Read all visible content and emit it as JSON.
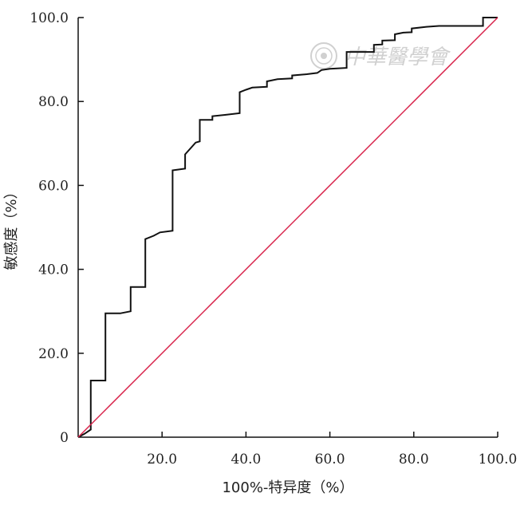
{
  "chart_data": {
    "type": "line",
    "xlabel": "100%-特异度（%）",
    "ylabel": "敏感度（%）",
    "xlim": [
      0,
      100
    ],
    "ylim": [
      0,
      100
    ],
    "x_ticks": [
      20,
      40,
      60,
      80,
      100
    ],
    "x_tick_labels": [
      "20.0",
      "40.0",
      "60.0",
      "80.0",
      "100.0"
    ],
    "y_ticks": [
      0,
      20,
      40,
      60,
      80,
      100
    ],
    "y_tick_labels": [
      "0",
      "20.0",
      "40.0",
      "60.0",
      "80.0",
      "100.0"
    ],
    "grid": false,
    "series": [
      {
        "color": "#111111",
        "points": [
          [
            0,
            0
          ],
          [
            1.5,
            0.8
          ],
          [
            3.0,
            1.8
          ],
          [
            3.0,
            13.5
          ],
          [
            6.5,
            13.5
          ],
          [
            6.5,
            29.5
          ],
          [
            10.0,
            29.5
          ],
          [
            12.5,
            30.0
          ],
          [
            12.5,
            35.8
          ],
          [
            16.0,
            35.8
          ],
          [
            16.0,
            47.2
          ],
          [
            18.0,
            48.0
          ],
          [
            19.5,
            48.8
          ],
          [
            22.5,
            49.2
          ],
          [
            22.5,
            63.6
          ],
          [
            25.5,
            64.0
          ],
          [
            25.5,
            67.4
          ],
          [
            28.0,
            70.2
          ],
          [
            29.0,
            70.5
          ],
          [
            29.0,
            75.6
          ],
          [
            32.0,
            75.6
          ],
          [
            32.0,
            76.5
          ],
          [
            35.0,
            76.8
          ],
          [
            38.5,
            77.2
          ],
          [
            38.5,
            82.2
          ],
          [
            40.0,
            82.8
          ],
          [
            41.5,
            83.3
          ],
          [
            45.0,
            83.5
          ],
          [
            45.0,
            84.8
          ],
          [
            47.5,
            85.3
          ],
          [
            51.0,
            85.5
          ],
          [
            51.0,
            86.2
          ],
          [
            54.5,
            86.5
          ],
          [
            57.0,
            86.8
          ],
          [
            58.0,
            87.5
          ],
          [
            60.0,
            87.8
          ],
          [
            64.0,
            88.0
          ],
          [
            64.0,
            91.8
          ],
          [
            70.5,
            91.8
          ],
          [
            70.5,
            93.5
          ],
          [
            72.5,
            93.6
          ],
          [
            72.5,
            94.5
          ],
          [
            75.5,
            94.6
          ],
          [
            75.5,
            96.0
          ],
          [
            77.5,
            96.4
          ],
          [
            79.5,
            96.5
          ],
          [
            79.5,
            97.4
          ],
          [
            83.0,
            97.8
          ],
          [
            86.0,
            98.0
          ],
          [
            96.5,
            98.0
          ],
          [
            96.5,
            100
          ],
          [
            100,
            100
          ]
        ]
      },
      {
        "color": "#d8224a",
        "points": [
          [
            0,
            0
          ],
          [
            100,
            100
          ]
        ]
      }
    ]
  },
  "watermark": {
    "text": "中華醫學會",
    "seal_color": "#d0d0d0"
  }
}
